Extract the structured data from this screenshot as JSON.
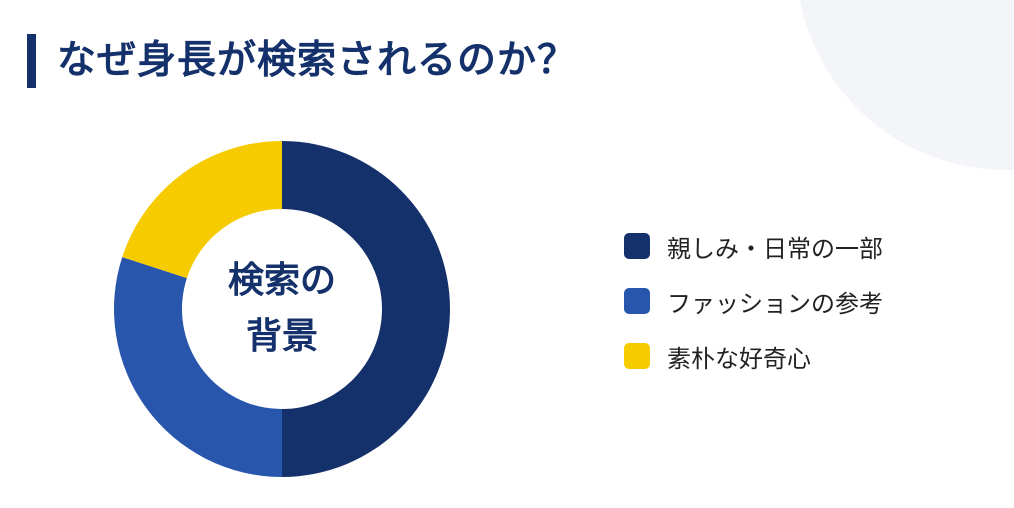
{
  "title": "なぜ身長が検索されるのか？",
  "center_label": {
    "line1": "検索の",
    "line2": "背景"
  },
  "colors": {
    "navy": "#14316b",
    "blue": "#2856ad",
    "yellow": "#f6cb00"
  },
  "chart_data": {
    "type": "pie",
    "donut": true,
    "categories": [
      "親しみ・日常の一部",
      "ファッションの参考",
      "素朴な好奇心"
    ],
    "values": [
      50,
      30,
      20
    ],
    "colors": [
      "#14316b",
      "#2856ad",
      "#f6cb00"
    ],
    "legend_position": "right"
  },
  "legend": [
    {
      "label": "親しみ・日常の一部",
      "color": "#14316b"
    },
    {
      "label": "ファッションの参考",
      "color": "#2856ad"
    },
    {
      "label": "素朴な好奇心",
      "color": "#f6cb00"
    }
  ]
}
